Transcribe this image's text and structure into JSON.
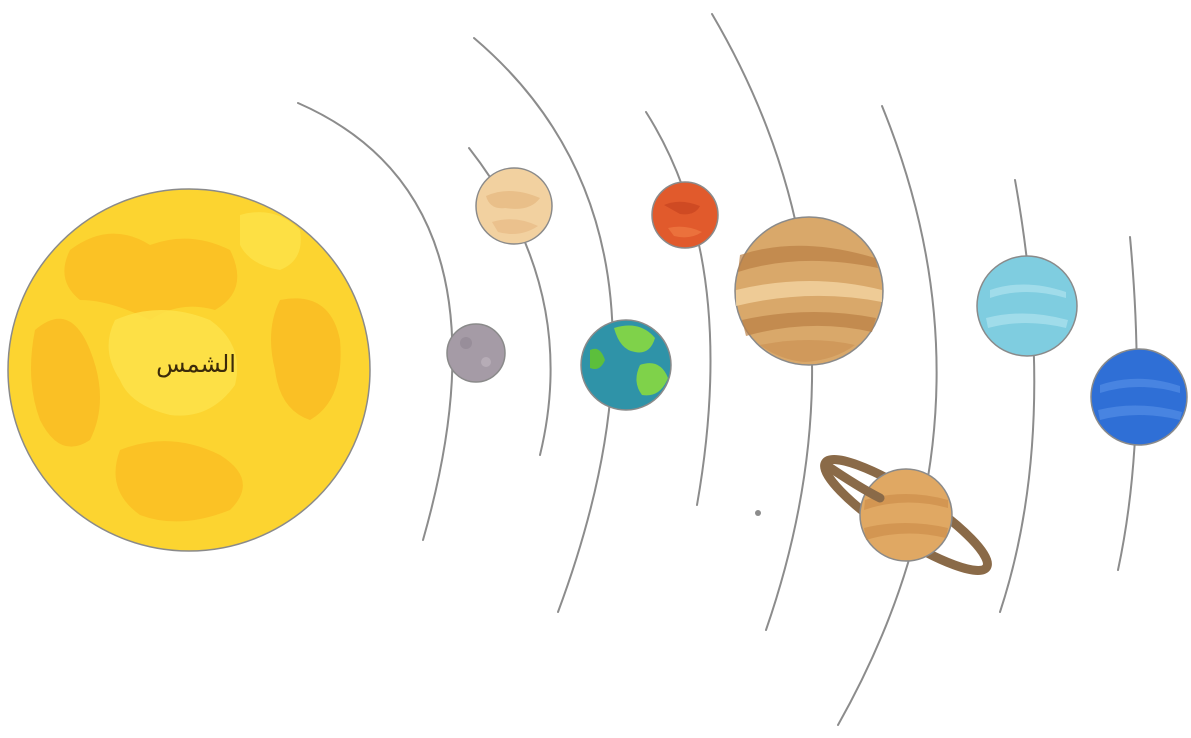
{
  "diagram": {
    "sun_label": "الشمس"
  },
  "colors": {
    "sun": "#fcd430",
    "sun_patch_light": "#fde24a",
    "sun_patch_dark": "#f9b21e",
    "mercury": "#a59ba6",
    "venus": "#f2d1a0",
    "earth_ocean": "#2f93a8",
    "earth_land": "#7fd24a",
    "mars": "#e15a2c",
    "jupiter": "#d9a86a",
    "saturn": "#e0a863",
    "saturn_ring": "#8a6a48",
    "uranus": "#7fcde0",
    "neptune": "#2f6fd6",
    "orbit": "#8c8c8c"
  },
  "icons": [
    "sun-icon",
    "mercury-icon",
    "venus-icon",
    "earth-icon",
    "mars-icon",
    "jupiter-icon",
    "saturn-icon",
    "uranus-icon",
    "neptune-icon"
  ]
}
